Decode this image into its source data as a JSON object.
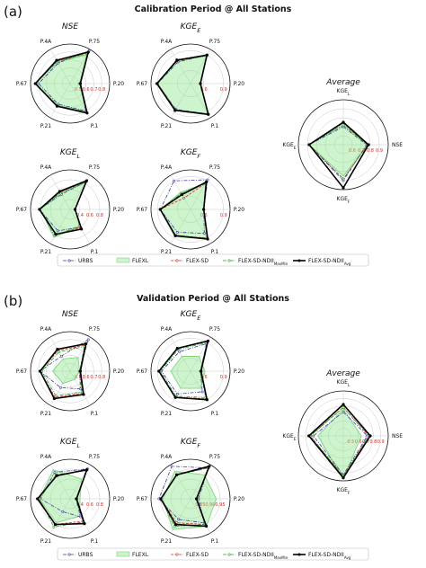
{
  "panels": [
    {
      "letter": "(a)",
      "title": "Calibration Period @ All Stations",
      "legend": [
        "URBS",
        "FLEXL",
        "FLEX-SD",
        "FLEX-SD-NDII",
        "FLEX-SD-NDII"
      ],
      "legend_subs": [
        "",
        "",
        "",
        "MaxMin",
        "Avg"
      ]
    },
    {
      "letter": "(b)",
      "title": "Validation Period @ All Stations",
      "legend": [
        "URBS",
        "FLEXL",
        "FLEX-SD",
        "FLEX-SD-NDII",
        "FLEX-SD-NDII"
      ],
      "legend_subs": [
        "",
        "",
        "",
        "MaxMin",
        "Avg"
      ]
    }
  ],
  "colors": {
    "URBS": "#3b3b9a",
    "FLEXL": "#7fd67f",
    "FLEX-SD": "#d62728",
    "FLEX-SD-NDII_MaxMin": "#2ca02c",
    "FLEX-SD-NDII_Avg": "#000000",
    "tick": "#d62728"
  },
  "chart_data": [
    {
      "panel": "a",
      "type": "radar",
      "title": "NSE",
      "title_sub": "",
      "axes": [
        "P.75",
        "P.20",
        "P.1",
        "P.21",
        "P.67",
        "P.4A"
      ],
      "rticks": [
        "0.5",
        "0.6",
        "0.7",
        "0.8"
      ],
      "range": [
        0.4,
        0.9
      ],
      "series": [
        {
          "key": "URBS",
          "values": [
            0.88,
            0.52,
            0.8,
            0.7,
            0.8,
            0.7
          ]
        },
        {
          "key": "FLEXL",
          "values": [
            0.82,
            0.52,
            0.82,
            0.72,
            0.84,
            0.72
          ]
        },
        {
          "key": "FLEX-SD",
          "values": [
            0.84,
            0.53,
            0.82,
            0.73,
            0.84,
            0.73
          ]
        },
        {
          "key": "FLEX-SD-NDII_MaxMin",
          "values": [
            0.84,
            0.52,
            0.81,
            0.72,
            0.84,
            0.72
          ]
        },
        {
          "key": "FLEX-SD-NDII_Avg",
          "values": [
            0.86,
            0.53,
            0.83,
            0.73,
            0.84,
            0.74
          ]
        }
      ]
    },
    {
      "panel": "a",
      "type": "radar",
      "title": "KGE",
      "title_sub": "E",
      "axes": [
        "P.75",
        "P.20",
        "P.1",
        "P.21",
        "P.67",
        "P.4A"
      ],
      "rticks": [
        "0.6",
        "0.9"
      ],
      "range": [
        0.4,
        1.0
      ],
      "series": [
        {
          "key": "URBS",
          "values": [
            0.9,
            0.55,
            0.93,
            0.85,
            0.9,
            0.78
          ]
        },
        {
          "key": "FLEXL",
          "values": [
            0.88,
            0.55,
            0.93,
            0.86,
            0.9,
            0.8
          ]
        },
        {
          "key": "FLEX-SD",
          "values": [
            0.9,
            0.55,
            0.94,
            0.86,
            0.9,
            0.82
          ]
        },
        {
          "key": "FLEX-SD-NDII_MaxMin",
          "values": [
            0.89,
            0.55,
            0.93,
            0.86,
            0.9,
            0.8
          ]
        },
        {
          "key": "FLEX-SD-NDII_Avg",
          "values": [
            0.9,
            0.55,
            0.94,
            0.87,
            0.91,
            0.81
          ]
        }
      ]
    },
    {
      "panel": "a",
      "type": "radar",
      "title": "KGE",
      "title_sub": "L",
      "axes": [
        "P.75",
        "P.20",
        "P.1",
        "P.21",
        "P.67",
        "P.4A"
      ],
      "rticks": [
        "0.4",
        "0.6",
        "0.8"
      ],
      "range": [
        0.2,
        1.0
      ],
      "series": [
        {
          "key": "URBS",
          "values": [
            0.85,
            0.3,
            0.62,
            0.7,
            0.82,
            0.55
          ]
        },
        {
          "key": "FLEXL",
          "values": [
            0.82,
            0.3,
            0.6,
            0.85,
            0.8,
            0.58
          ]
        },
        {
          "key": "FLEX-SD",
          "values": [
            0.86,
            0.3,
            0.63,
            0.78,
            0.82,
            0.6
          ]
        },
        {
          "key": "FLEX-SD-NDII_MaxMin",
          "values": [
            0.84,
            0.3,
            0.58,
            0.82,
            0.82,
            0.58
          ]
        },
        {
          "key": "FLEX-SD-NDII_Avg",
          "values": [
            0.87,
            0.3,
            0.66,
            0.78,
            0.82,
            0.62
          ]
        }
      ]
    },
    {
      "panel": "a",
      "type": "radar",
      "title": "KGE",
      "title_sub": "F",
      "axes": [
        "P.75",
        "P.20",
        "P.1",
        "P.21",
        "P.67",
        "P.4A"
      ],
      "rticks": [
        "0.6",
        "0.9"
      ],
      "range": [
        0.4,
        1.0
      ],
      "series": [
        {
          "key": "URBS",
          "values": [
            0.92,
            0.6,
            0.82,
            0.8,
            0.86,
            0.9
          ]
        },
        {
          "key": "FLEXL",
          "values": [
            0.86,
            0.6,
            0.92,
            0.88,
            0.86,
            0.7
          ]
        },
        {
          "key": "FLEX-SD",
          "values": [
            0.86,
            0.6,
            0.9,
            0.86,
            0.86,
            0.6
          ]
        },
        {
          "key": "FLEX-SD-NDII_MaxMin",
          "values": [
            0.86,
            0.6,
            0.9,
            0.86,
            0.86,
            0.68
          ]
        },
        {
          "key": "FLEX-SD-NDII_Avg",
          "values": [
            0.88,
            0.6,
            0.92,
            0.86,
            0.86,
            0.66
          ]
        }
      ]
    },
    {
      "panel": "a",
      "type": "radar",
      "title": "Average",
      "title_sub": "",
      "axes": [
        "KGEL",
        "NSE",
        "KGEF",
        "KGEE"
      ],
      "axis_subs": [
        "L",
        "",
        "F",
        "E"
      ],
      "rticks": [
        "0.6",
        "0.7",
        "0.8",
        "0.9"
      ],
      "range": [
        0.5,
        1.0
      ],
      "series": [
        {
          "key": "URBS",
          "values": [
            0.7,
            0.76,
            0.9,
            0.88
          ]
        },
        {
          "key": "FLEXL",
          "values": [
            0.72,
            0.77,
            0.85,
            0.88
          ]
        },
        {
          "key": "FLEX-SD",
          "values": [
            0.74,
            0.77,
            0.88,
            0.88
          ]
        },
        {
          "key": "FLEX-SD-NDII_MaxMin",
          "values": [
            0.72,
            0.77,
            0.88,
            0.88
          ]
        },
        {
          "key": "FLEX-SD-NDII_Avg",
          "values": [
            0.75,
            0.78,
            0.98,
            0.88
          ]
        }
      ]
    },
    {
      "panel": "b",
      "type": "radar",
      "title": "NSE",
      "title_sub": "",
      "axes": [
        "P.75",
        "P.20",
        "P.1",
        "P.21",
        "P.67",
        "P.4A"
      ],
      "rticks": [
        "0.5",
        "0.6",
        "0.7",
        "0.8"
      ],
      "range": [
        0.4,
        0.9
      ],
      "series": [
        {
          "key": "URBS",
          "values": [
            0.86,
            0.52,
            0.66,
            0.64,
            0.78,
            0.62
          ]
        },
        {
          "key": "FLEXL",
          "values": [
            0.6,
            0.52,
            0.52,
            0.58,
            0.62,
            0.58
          ]
        },
        {
          "key": "FLEX-SD",
          "values": [
            0.78,
            0.52,
            0.72,
            0.78,
            0.78,
            0.7
          ]
        },
        {
          "key": "FLEX-SD-NDII_MaxMin",
          "values": [
            0.76,
            0.52,
            0.7,
            0.76,
            0.76,
            0.68
          ]
        },
        {
          "key": "FLEX-SD-NDII_Avg",
          "values": [
            0.8,
            0.53,
            0.74,
            0.8,
            0.78,
            0.72
          ]
        }
      ]
    },
    {
      "panel": "b",
      "type": "radar",
      "title": "KGE",
      "title_sub": "E",
      "axes": [
        "P.75",
        "P.20",
        "P.1",
        "P.21",
        "P.67",
        "P.4A"
      ],
      "rticks": [
        "0.6",
        "0.9"
      ],
      "range": [
        0.4,
        1.0
      ],
      "series": [
        {
          "key": "URBS",
          "values": [
            0.88,
            0.55,
            0.76,
            0.8,
            0.84,
            0.74
          ]
        },
        {
          "key": "FLEXL",
          "values": [
            0.66,
            0.62,
            0.7,
            0.7,
            0.7,
            0.66
          ]
        },
        {
          "key": "FLEX-SD",
          "values": [
            0.92,
            0.55,
            0.88,
            0.86,
            0.88,
            0.8
          ]
        },
        {
          "key": "FLEX-SD-NDII_MaxMin",
          "values": [
            0.9,
            0.55,
            0.86,
            0.84,
            0.86,
            0.78
          ]
        },
        {
          "key": "FLEX-SD-NDII_Avg",
          "values": [
            0.93,
            0.56,
            0.9,
            0.86,
            0.88,
            0.8
          ]
        }
      ]
    },
    {
      "panel": "b",
      "type": "radar",
      "title": "KGE",
      "title_sub": "L",
      "axes": [
        "P.75",
        "P.20",
        "P.1",
        "P.21",
        "P.67",
        "P.4A"
      ],
      "rticks": [
        "0.4",
        "0.6",
        "0.8"
      ],
      "range": [
        0.2,
        1.0
      ],
      "series": [
        {
          "key": "URBS",
          "values": [
            0.9,
            0.32,
            0.62,
            0.5,
            0.8,
            0.82
          ]
        },
        {
          "key": "FLEXL",
          "values": [
            0.66,
            0.4,
            0.6,
            0.76,
            0.82,
            0.88
          ]
        },
        {
          "key": "FLEX-SD",
          "values": [
            0.86,
            0.32,
            0.72,
            0.8,
            0.84,
            0.76
          ]
        },
        {
          "key": "FLEX-SD-NDII_MaxMin",
          "values": [
            0.86,
            0.32,
            0.74,
            0.86,
            0.82,
            0.76
          ]
        },
        {
          "key": "FLEX-SD-NDII_Avg",
          "values": [
            0.88,
            0.33,
            0.78,
            0.8,
            0.86,
            0.74
          ]
        }
      ]
    },
    {
      "panel": "b",
      "type": "radar",
      "title": "KGE",
      "title_sub": "F",
      "axes": [
        "P.75",
        "P.20",
        "P.1",
        "P.21",
        "P.67",
        "P.4A"
      ],
      "rticks": [
        "0.85",
        "0.90",
        "0.95"
      ],
      "range": [
        0.8,
        1.0
      ],
      "series": [
        {
          "key": "URBS",
          "values": [
            0.98,
            0.84,
            0.94,
            0.92,
            0.96,
            0.99
          ]
        },
        {
          "key": "FLEXL",
          "values": [
            0.94,
            0.93,
            0.96,
            0.98,
            0.94,
            0.96
          ]
        },
        {
          "key": "FLEX-SD",
          "values": [
            0.98,
            0.83,
            0.95,
            0.94,
            0.95,
            0.94
          ]
        },
        {
          "key": "FLEX-SD-NDII_MaxMin",
          "values": [
            0.98,
            0.83,
            0.95,
            0.96,
            0.95,
            0.94
          ]
        },
        {
          "key": "FLEX-SD-NDII_Avg",
          "values": [
            0.99,
            0.83,
            0.96,
            0.95,
            0.95,
            0.94
          ]
        }
      ]
    },
    {
      "panel": "b",
      "type": "radar",
      "title": "Average",
      "title_sub": "",
      "axes": [
        "KGEL",
        "NSE",
        "KGEF",
        "KGEE"
      ],
      "axis_subs": [
        "L",
        "",
        "F",
        "E"
      ],
      "rticks": [
        "0.5",
        "0.6",
        "0.7",
        "0.8",
        "0.9"
      ],
      "range": [
        0.4,
        1.0
      ],
      "series": [
        {
          "key": "URBS",
          "values": [
            0.72,
            0.72,
            0.92,
            0.8
          ]
        },
        {
          "key": "FLEXL",
          "values": [
            0.76,
            0.64,
            0.98,
            0.74
          ]
        },
        {
          "key": "FLEX-SD",
          "values": [
            0.78,
            0.74,
            0.94,
            0.84
          ]
        },
        {
          "key": "FLEX-SD-NDII_MaxMin",
          "values": [
            0.78,
            0.74,
            0.94,
            0.84
          ]
        },
        {
          "key": "FLEX-SD-NDII_Avg",
          "values": [
            0.82,
            0.76,
            0.96,
            0.86
          ]
        }
      ]
    }
  ]
}
